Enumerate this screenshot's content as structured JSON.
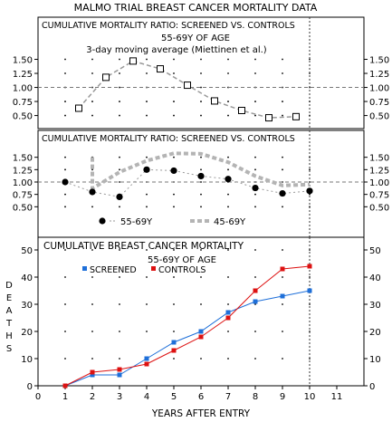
{
  "title": "MALMO TRIAL BREAST CANCER MORTALITY DATA",
  "chart_data": [
    {
      "type": "scatter",
      "title": "CUMULATIVE MORTALITY RATIO: SCREENED VS. CONTROLS",
      "subtitle": "55-69Y OF AGE",
      "subtitle2": "3-day moving average (Miettinen et al.)",
      "yticks": [
        0.5,
        0.75,
        1.0,
        1.25,
        1.5
      ],
      "ytick_labels": [
        "0.50",
        "0.75",
        "1.00",
        "1.25",
        "1.50"
      ],
      "ylim": [
        0.3,
        1.75
      ],
      "reference_line": 1.0,
      "series": [
        {
          "x": [
            1.5,
            2.5,
            3.5,
            4.5,
            5.5,
            6.5,
            7.5,
            8.5,
            9.5
          ],
          "values": [
            0.63,
            1.18,
            1.47,
            1.33,
            1.04,
            0.76,
            0.59,
            0.46,
            0.48
          ],
          "color": "#999999"
        }
      ]
    },
    {
      "type": "line",
      "title": "CUMULATIVE MORTALITY RATIO: SCREENED VS. CONTROLS",
      "yticks": [
        0.5,
        0.75,
        1.0,
        1.25,
        1.5
      ],
      "ytick_labels": [
        "0.50",
        "0.75",
        "1.00",
        "1.25",
        "1.50"
      ],
      "ylim": [
        0.25,
        1.75
      ],
      "reference_line": 1.0,
      "series": [
        {
          "name": "55-69Y",
          "x": [
            1,
            2,
            3,
            4,
            5,
            6,
            7,
            8,
            9,
            10
          ],
          "values": [
            1.0,
            0.8,
            0.7,
            1.25,
            1.23,
            1.12,
            1.06,
            0.88,
            0.77,
            0.82
          ],
          "color": "#000000"
        },
        {
          "name": "45-69Y",
          "x": [
            2,
            2,
            3,
            4,
            5,
            6,
            7,
            8,
            9,
            10
          ],
          "values": [
            1.5,
            0.87,
            1.2,
            1.43,
            1.58,
            1.57,
            1.4,
            1.12,
            0.93,
            0.95
          ],
          "color": "#b4b4b4"
        }
      ],
      "legend": [
        "55-69Y",
        "45-69Y"
      ],
      "legend_position": "bottom"
    },
    {
      "type": "line",
      "title": "CUMULATIVE BREAST CANCER  MORTALITY",
      "subtitle": "55-69Y OF AGE",
      "xlabel": "YEARS AFTER ENTRY",
      "ylabel": "DEATHS",
      "xlim": [
        0,
        12
      ],
      "xticks": [
        0,
        1,
        2,
        3,
        4,
        5,
        6,
        7,
        8,
        9,
        10,
        11
      ],
      "ylim": [
        0,
        50
      ],
      "yticks": [
        0,
        10,
        20,
        30,
        40,
        50
      ],
      "series": [
        {
          "name": "SCREENED",
          "x": [
            1,
            2,
            3,
            4,
            5,
            6,
            7,
            8,
            9,
            10
          ],
          "values": [
            0,
            4,
            4,
            10,
            16,
            20,
            27,
            31,
            33,
            35
          ],
          "color": "#1e6fd9"
        },
        {
          "name": "CONTROLS",
          "x": [
            1,
            2,
            3,
            4,
            5,
            6,
            7,
            8,
            9,
            10
          ],
          "values": [
            0,
            5,
            6,
            8,
            13,
            18,
            25,
            35,
            43,
            44
          ],
          "color": "#dd1111"
        }
      ],
      "legend_position": "top-left",
      "marker_line_x": 10
    }
  ]
}
